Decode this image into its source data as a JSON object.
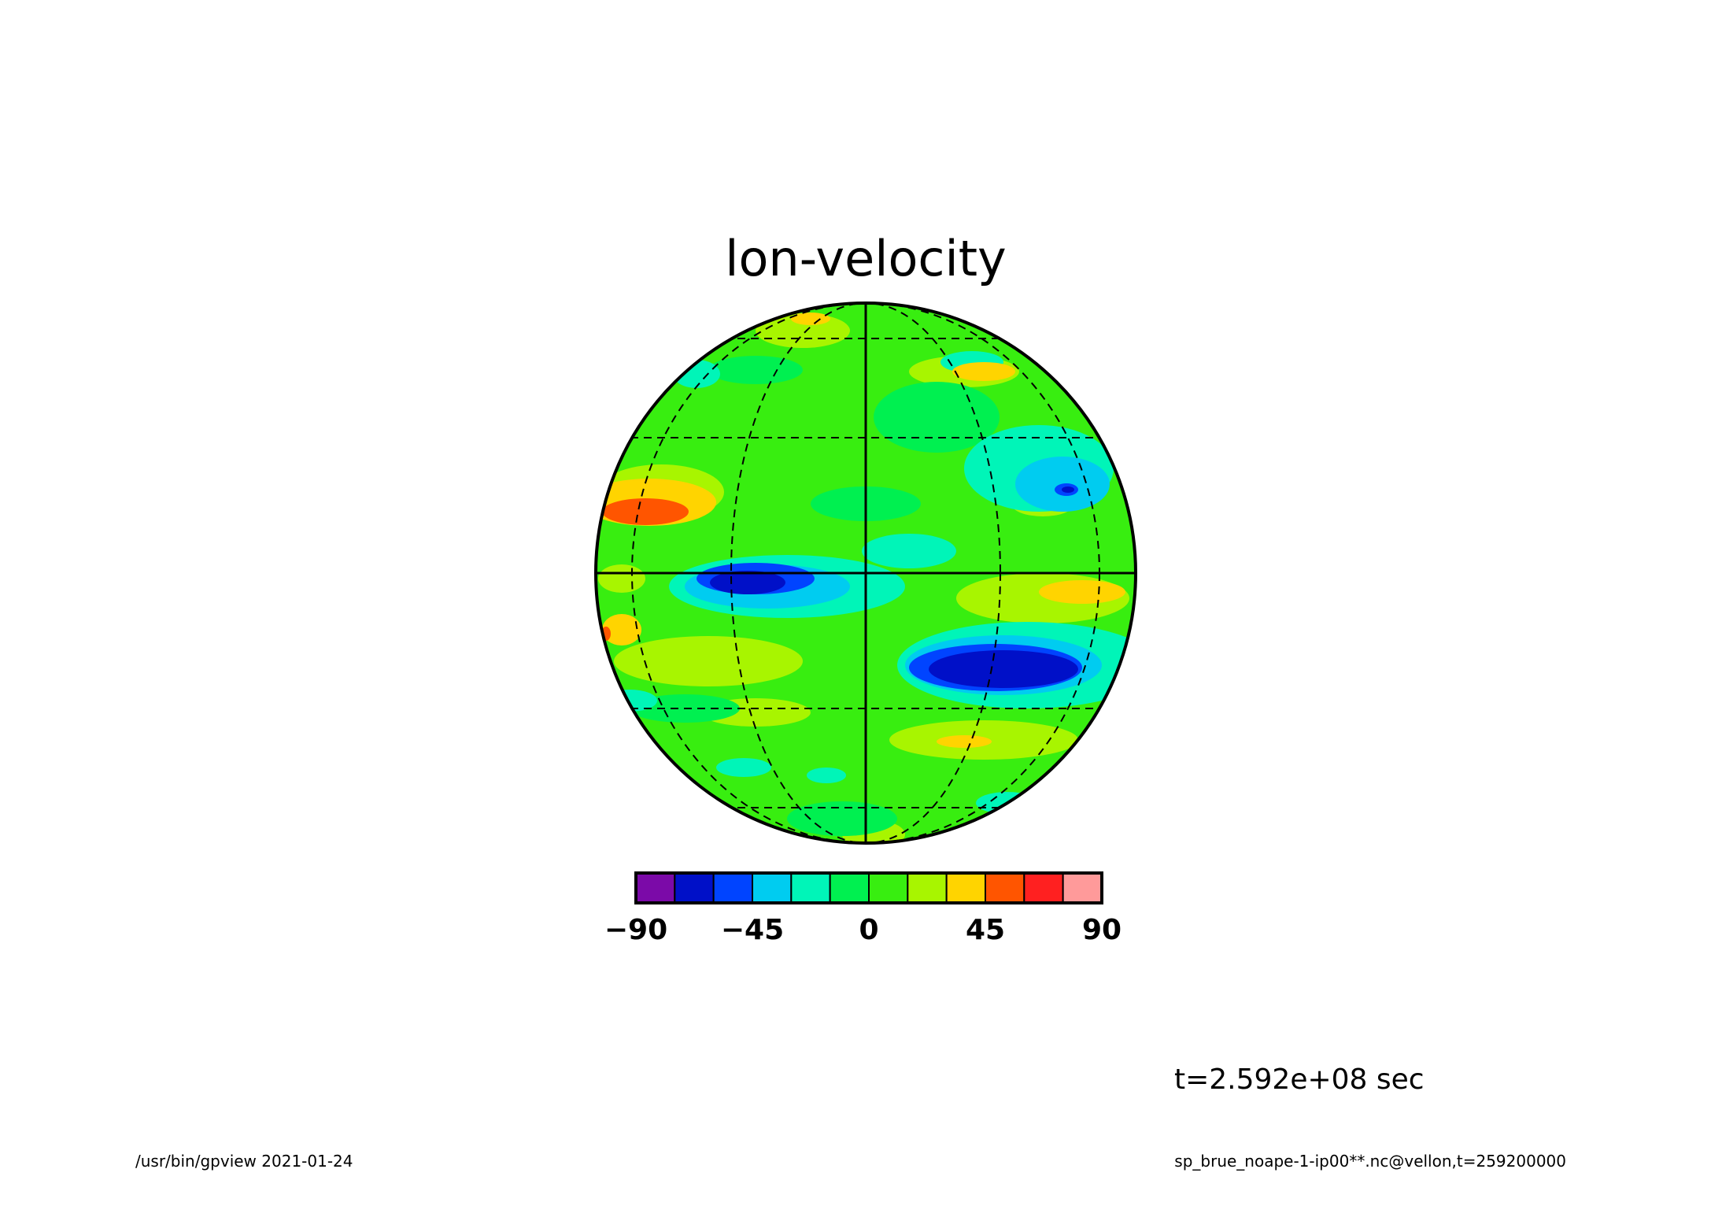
{
  "chart_data": {
    "type": "heatmap",
    "title": "lon-velocity",
    "projection": "orthographic globe",
    "colorbar": {
      "levels": [
        -90,
        -75,
        -60,
        -45,
        -30,
        -15,
        0,
        15,
        30,
        45,
        60,
        75,
        90
      ],
      "colors": [
        "#7b0aa8",
        "#0010c8",
        "#0044ff",
        "#00ccf0",
        "#00f5b8",
        "#00f050",
        "#38ee10",
        "#a8f500",
        "#ffd400",
        "#ff5500",
        "#ff2020",
        "#ff9a9a"
      ],
      "tick_values": [
        "-90",
        "-45",
        "0",
        "45",
        "90"
      ]
    },
    "grid": true,
    "annotations": {
      "time": "t=2.592e+08 sec"
    },
    "footer": {
      "left": "/usr/bin/gpview  2021-01-24",
      "right": "sp_brue_noape-1-ip00**.nc@vellon,t=259200000"
    }
  }
}
